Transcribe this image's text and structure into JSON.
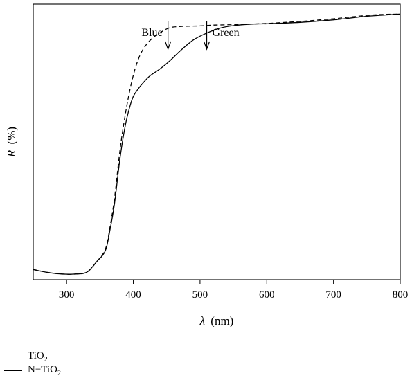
{
  "chart_data": {
    "type": "line",
    "xlabel_symbol": "λ",
    "xlabel_unit": "(nm)",
    "ylabel_symbol": "R",
    "ylabel_unit": "(%)",
    "xlim": [
      250,
      800
    ],
    "ylim": [
      0,
      100
    ],
    "xticks": [
      300,
      400,
      500,
      600,
      700,
      800
    ],
    "y_tick_labels": false,
    "series": [
      {
        "name_main": "TiO",
        "name_sub": "2",
        "style": "dashed",
        "x": [
          250,
          270,
          290,
          310,
          330,
          345,
          358,
          365,
          372,
          380,
          388,
          395,
          402,
          410,
          418,
          425,
          432,
          440,
          450,
          460,
          480,
          500,
          520,
          540,
          560,
          580,
          600,
          620,
          640,
          660,
          680,
          700,
          720,
          740,
          760,
          780,
          800
        ],
        "y": [
          3.7,
          2.7,
          2.1,
          2.0,
          2.7,
          6.5,
          11.0,
          19.0,
          30.0,
          47.0,
          60.0,
          69.0,
          76.0,
          81.5,
          84.8,
          86.8,
          88.3,
          89.6,
          91.0,
          91.7,
          92.0,
          92.1,
          92.4,
          92.5,
          92.6,
          92.8,
          93.0,
          93.3,
          93.6,
          93.9,
          94.3,
          94.7,
          95.2,
          95.7,
          96.1,
          96.3,
          96.4
        ]
      },
      {
        "name_main": "N−TiO",
        "name_sub": "2",
        "style": "solid",
        "x": [
          250,
          270,
          290,
          310,
          330,
          345,
          358,
          365,
          372,
          380,
          388,
          395,
          400,
          408,
          415,
          425,
          440,
          455,
          470,
          490,
          510,
          530,
          550,
          580,
          600,
          650,
          700,
          750,
          800
        ],
        "y": [
          3.7,
          2.7,
          2.1,
          2.0,
          2.7,
          6.5,
          10.5,
          18.0,
          28.0,
          44.0,
          56.0,
          63.0,
          66.5,
          69.5,
          71.5,
          74.0,
          76.5,
          79.5,
          83.0,
          87.0,
          89.5,
          91.3,
          92.2,
          92.8,
          92.9,
          93.4,
          94.3,
          95.6,
          96.4
        ]
      }
    ],
    "annotations": [
      {
        "label": "Blue",
        "x": 452,
        "side": "left"
      },
      {
        "label": "Green",
        "x": 510,
        "side": "right"
      }
    ]
  }
}
